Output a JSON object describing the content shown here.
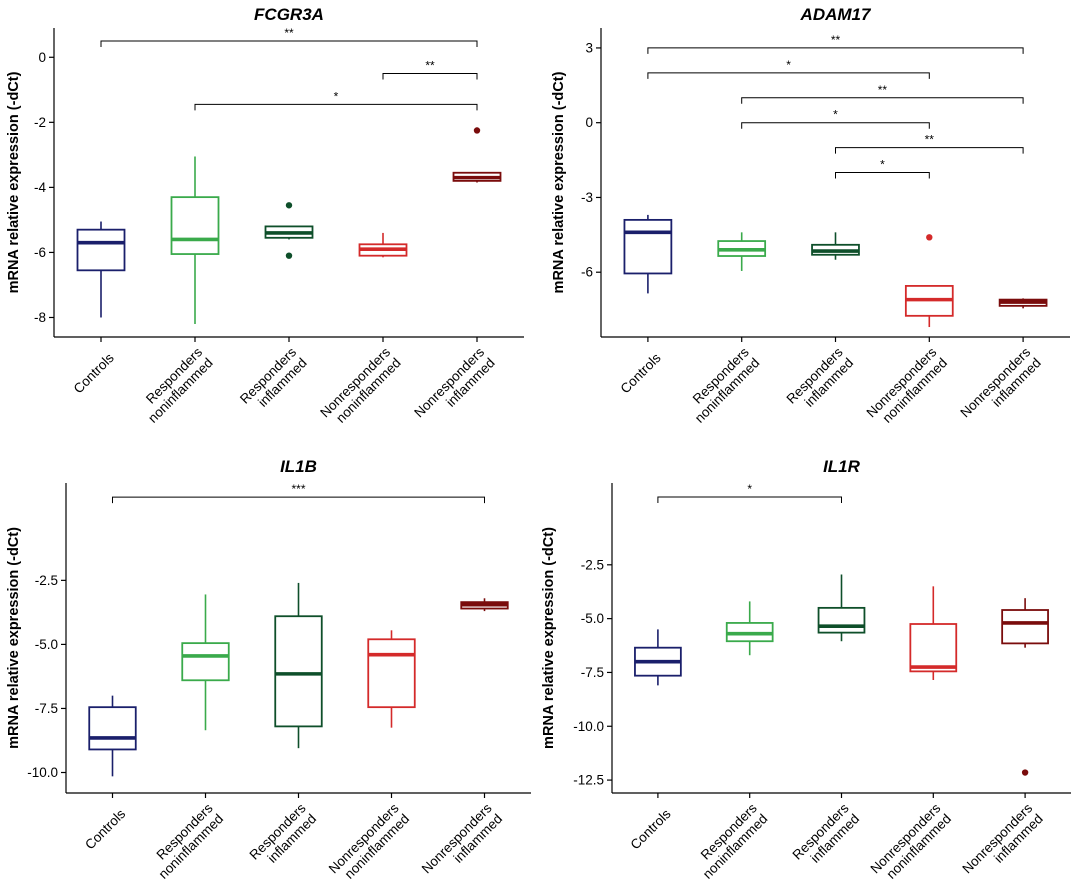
{
  "colors": {
    "Controls": "#1a1f6b",
    "Responders noninflammed": "#3aaa4b",
    "Responders inflammed": "#0e4f2a",
    "Nonresponders noninflammed": "#d42a2a",
    "Nonresponders inflammed": "#7a0c0c"
  },
  "chart_data": [
    {
      "type": "box",
      "title": "FCGR3A",
      "ylabel": "mRNA relative expression (-dCt)",
      "ylim": [
        -8.6,
        0.9
      ],
      "yticks": [
        0,
        -2,
        -4,
        -6,
        -8
      ],
      "categories": [
        {
          "line1": "Controls",
          "line2": ""
        },
        {
          "line1": "Responders",
          "line2": "noninflammed"
        },
        {
          "line1": "Responders",
          "line2": "inflammed"
        },
        {
          "line1": "Nonresponders",
          "line2": "noninflammed"
        },
        {
          "line1": "Nonresponders",
          "line2": "inflammed"
        }
      ],
      "boxes": [
        {
          "group": "Controls",
          "min": -8.0,
          "q1": -6.55,
          "median": -5.7,
          "q3": -5.3,
          "max": -5.05,
          "outliers": []
        },
        {
          "group": "Responders noninflammed",
          "min": -8.2,
          "q1": -6.05,
          "median": -5.6,
          "q3": -4.3,
          "max": -3.05,
          "outliers": []
        },
        {
          "group": "Responders inflammed",
          "min": -5.6,
          "q1": -5.55,
          "median": -5.4,
          "q3": -5.2,
          "max": -5.2,
          "outliers": [
            -4.55,
            -6.1
          ]
        },
        {
          "group": "Nonresponders noninflammed",
          "min": -6.15,
          "q1": -6.1,
          "median": -5.9,
          "q3": -5.75,
          "max": -5.4,
          "outliers": []
        },
        {
          "group": "Nonresponders inflammed",
          "min": -3.85,
          "q1": -3.8,
          "median": -3.7,
          "q3": -3.55,
          "max": -3.55,
          "outliers": [
            -2.25
          ]
        }
      ],
      "brackets": [
        {
          "from": 0,
          "to": 4,
          "y": 0.5,
          "label": "**"
        },
        {
          "from": 3,
          "to": 4,
          "y": -0.5,
          "label": "**"
        },
        {
          "from": 1,
          "to": 4,
          "y": -1.45,
          "label": "*"
        }
      ]
    },
    {
      "type": "box",
      "title": "ADAM17",
      "ylabel": "mRNA relative expression (-dCt)",
      "ylim": [
        -8.6,
        3.8
      ],
      "yticks": [
        3,
        0,
        -3,
        -6
      ],
      "categories": [
        {
          "line1": "Controls",
          "line2": ""
        },
        {
          "line1": "Responders",
          "line2": "noninflammed"
        },
        {
          "line1": "Responders",
          "line2": "inflammed"
        },
        {
          "line1": "Nonresponders",
          "line2": "noninflammed"
        },
        {
          "line1": "Nonresponders",
          "line2": "inflammed"
        }
      ],
      "boxes": [
        {
          "group": "Controls",
          "min": -6.85,
          "q1": -6.05,
          "median": -4.4,
          "q3": -3.9,
          "max": -3.7,
          "outliers": []
        },
        {
          "group": "Responders noninflammed",
          "min": -5.95,
          "q1": -5.35,
          "median": -5.1,
          "q3": -4.75,
          "max": -4.4,
          "outliers": []
        },
        {
          "group": "Responders inflammed",
          "min": -5.5,
          "q1": -5.3,
          "median": -5.15,
          "q3": -4.9,
          "max": -4.4,
          "outliers": []
        },
        {
          "group": "Nonresponders noninflammed",
          "min": -8.2,
          "q1": -7.75,
          "median": -7.1,
          "q3": -6.55,
          "max": -6.55,
          "outliers": [
            -4.6
          ]
        },
        {
          "group": "Nonresponders inflammed",
          "min": -7.45,
          "q1": -7.35,
          "median": -7.2,
          "q3": -7.1,
          "max": -7.05,
          "outliers": []
        }
      ],
      "brackets": [
        {
          "from": 0,
          "to": 4,
          "y": 3.0,
          "label": "**"
        },
        {
          "from": 0,
          "to": 3,
          "y": 2.0,
          "label": "*"
        },
        {
          "from": 1,
          "to": 4,
          "y": 1.0,
          "label": "**"
        },
        {
          "from": 1,
          "to": 3,
          "y": 0.0,
          "label": "*"
        },
        {
          "from": 2,
          "to": 4,
          "y": -1.0,
          "label": "**"
        },
        {
          "from": 2,
          "to": 3,
          "y": -2.0,
          "label": "*"
        }
      ]
    },
    {
      "type": "box",
      "title": "IL1B",
      "ylabel": "mRNA relative expression (-dCt)",
      "ylim": [
        -10.8,
        1.3
      ],
      "yticks": [
        -2.5,
        -5.0,
        -7.5,
        -10.0
      ],
      "categories": [
        {
          "line1": "Controls",
          "line2": ""
        },
        {
          "line1": "Responders",
          "line2": "noninflammed"
        },
        {
          "line1": "Responders",
          "line2": "inflammed"
        },
        {
          "line1": "Nonresponders",
          "line2": "noninflammed"
        },
        {
          "line1": "Nonresponders",
          "line2": "inflammed"
        }
      ],
      "boxes": [
        {
          "group": "Controls",
          "min": -10.15,
          "q1": -9.1,
          "median": -8.65,
          "q3": -7.45,
          "max": -7.0,
          "outliers": []
        },
        {
          "group": "Responders noninflammed",
          "min": -8.35,
          "q1": -6.4,
          "median": -5.45,
          "q3": -4.95,
          "max": -3.05,
          "outliers": []
        },
        {
          "group": "Responders inflammed",
          "min": -9.05,
          "q1": -8.2,
          "median": -6.15,
          "q3": -3.9,
          "max": -2.6,
          "outliers": []
        },
        {
          "group": "Nonresponders noninflammed",
          "min": -8.25,
          "q1": -7.45,
          "median": -5.4,
          "q3": -4.8,
          "max": -4.45,
          "outliers": []
        },
        {
          "group": "Nonresponders inflammed",
          "min": -3.7,
          "q1": -3.6,
          "median": -3.45,
          "q3": -3.35,
          "max": -3.2,
          "outliers": []
        }
      ],
      "brackets": [
        {
          "from": 0,
          "to": 4,
          "y": 0.75,
          "label": "***"
        }
      ]
    },
    {
      "type": "box",
      "title": "IL1R",
      "ylabel": "mRNA relative expression (-dCt)",
      "ylim": [
        -13.1,
        1.3
      ],
      "yticks": [
        -2.5,
        -5.0,
        -7.5,
        -10.0,
        -12.5
      ],
      "categories": [
        {
          "line1": "Controls",
          "line2": ""
        },
        {
          "line1": "Responders",
          "line2": "noninflammed"
        },
        {
          "line1": "Responders",
          "line2": "inflammed"
        },
        {
          "line1": "Nonresponders",
          "line2": "noninflammed"
        },
        {
          "line1": "Nonresponders",
          "line2": "inflammed"
        }
      ],
      "boxes": [
        {
          "group": "Controls",
          "min": -8.1,
          "q1": -7.65,
          "median": -7.0,
          "q3": -6.35,
          "max": -5.5,
          "outliers": []
        },
        {
          "group": "Responders noninflammed",
          "min": -6.7,
          "q1": -6.05,
          "median": -5.7,
          "q3": -5.2,
          "max": -4.2,
          "outliers": []
        },
        {
          "group": "Responders inflammed",
          "min": -6.05,
          "q1": -5.65,
          "median": -5.35,
          "q3": -4.5,
          "max": -2.95,
          "outliers": []
        },
        {
          "group": "Nonresponders noninflammed",
          "min": -7.85,
          "q1": -7.45,
          "median": -7.25,
          "q3": -5.25,
          "max": -3.5,
          "outliers": []
        },
        {
          "group": "Nonresponders inflammed",
          "min": -6.35,
          "q1": -6.15,
          "median": -5.2,
          "q3": -4.6,
          "max": -4.05,
          "outliers": [
            -12.15
          ]
        }
      ],
      "brackets": [
        {
          "from": 0,
          "to": 2,
          "y": 0.65,
          "label": "*"
        }
      ]
    }
  ]
}
